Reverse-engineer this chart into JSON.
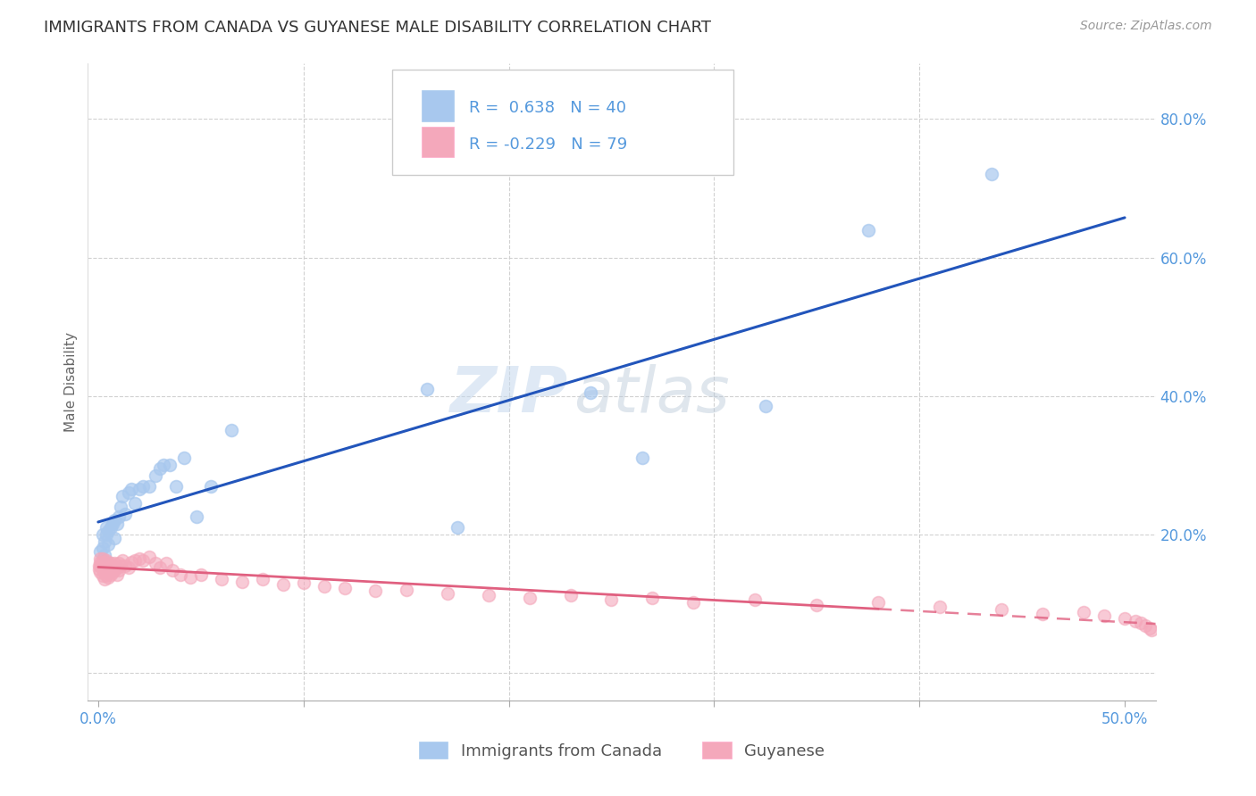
{
  "title": "IMMIGRANTS FROM CANADA VS GUYANESE MALE DISABILITY CORRELATION CHART",
  "source": "Source: ZipAtlas.com",
  "ylabel_label": "Male Disability",
  "xlim": [
    -0.005,
    0.515
  ],
  "ylim": [
    -0.04,
    0.88
  ],
  "blue_color": "#A8C8EE",
  "pink_color": "#F4A8BB",
  "blue_line_color": "#2255BB",
  "pink_line_color": "#E06080",
  "watermark_zip": "ZIP",
  "watermark_atlas": "atlas",
  "legend_blue_r": "R =  0.638",
  "legend_blue_n": "N = 40",
  "legend_pink_r": "R = -0.229",
  "legend_pink_n": "N = 79",
  "blue_points_x": [
    0.001,
    0.002,
    0.002,
    0.003,
    0.003,
    0.004,
    0.004,
    0.005,
    0.005,
    0.006,
    0.007,
    0.008,
    0.008,
    0.009,
    0.01,
    0.011,
    0.012,
    0.013,
    0.015,
    0.016,
    0.018,
    0.02,
    0.022,
    0.025,
    0.028,
    0.03,
    0.032,
    0.035,
    0.038,
    0.042,
    0.048,
    0.055,
    0.065,
    0.16,
    0.175,
    0.24,
    0.265,
    0.325,
    0.375,
    0.435
  ],
  "blue_points_y": [
    0.175,
    0.2,
    0.18,
    0.19,
    0.17,
    0.2,
    0.21,
    0.185,
    0.205,
    0.21,
    0.215,
    0.22,
    0.195,
    0.215,
    0.225,
    0.24,
    0.255,
    0.23,
    0.26,
    0.265,
    0.245,
    0.265,
    0.27,
    0.27,
    0.285,
    0.295,
    0.3,
    0.3,
    0.27,
    0.31,
    0.225,
    0.27,
    0.35,
    0.41,
    0.21,
    0.405,
    0.31,
    0.385,
    0.64,
    0.72
  ],
  "pink_points_x": [
    0.0003,
    0.0005,
    0.001,
    0.001,
    0.001,
    0.001,
    0.0015,
    0.002,
    0.002,
    0.002,
    0.002,
    0.003,
    0.003,
    0.003,
    0.003,
    0.004,
    0.004,
    0.004,
    0.004,
    0.005,
    0.005,
    0.005,
    0.006,
    0.006,
    0.006,
    0.007,
    0.007,
    0.008,
    0.008,
    0.009,
    0.009,
    0.01,
    0.01,
    0.011,
    0.012,
    0.013,
    0.015,
    0.016,
    0.018,
    0.02,
    0.022,
    0.025,
    0.028,
    0.03,
    0.033,
    0.036,
    0.04,
    0.045,
    0.05,
    0.06,
    0.07,
    0.08,
    0.09,
    0.1,
    0.11,
    0.12,
    0.135,
    0.15,
    0.17,
    0.19,
    0.21,
    0.23,
    0.25,
    0.27,
    0.29,
    0.32,
    0.35,
    0.38,
    0.41,
    0.44,
    0.46,
    0.48,
    0.49,
    0.5,
    0.505,
    0.508,
    0.51,
    0.512,
    0.513
  ],
  "pink_points_y": [
    0.155,
    0.15,
    0.145,
    0.155,
    0.16,
    0.165,
    0.155,
    0.14,
    0.15,
    0.16,
    0.165,
    0.135,
    0.145,
    0.155,
    0.16,
    0.14,
    0.15,
    0.158,
    0.162,
    0.138,
    0.148,
    0.158,
    0.142,
    0.152,
    0.158,
    0.145,
    0.155,
    0.148,
    0.158,
    0.142,
    0.152,
    0.148,
    0.158,
    0.155,
    0.162,
    0.155,
    0.152,
    0.16,
    0.162,
    0.165,
    0.162,
    0.168,
    0.158,
    0.152,
    0.158,
    0.148,
    0.142,
    0.138,
    0.142,
    0.135,
    0.132,
    0.135,
    0.128,
    0.13,
    0.125,
    0.122,
    0.118,
    0.12,
    0.115,
    0.112,
    0.108,
    0.112,
    0.105,
    0.108,
    0.102,
    0.105,
    0.098,
    0.102,
    0.095,
    0.092,
    0.085,
    0.088,
    0.082,
    0.078,
    0.075,
    0.072,
    0.068,
    0.065,
    0.062
  ],
  "background_color": "#FFFFFF",
  "grid_color": "#CCCCCC",
  "tick_color": "#5599DD",
  "title_fontsize": 13,
  "axis_label_fontsize": 11,
  "tick_fontsize": 12,
  "source_fontsize": 10,
  "watermark_fontsize_zip": 52,
  "watermark_fontsize_atlas": 52
}
